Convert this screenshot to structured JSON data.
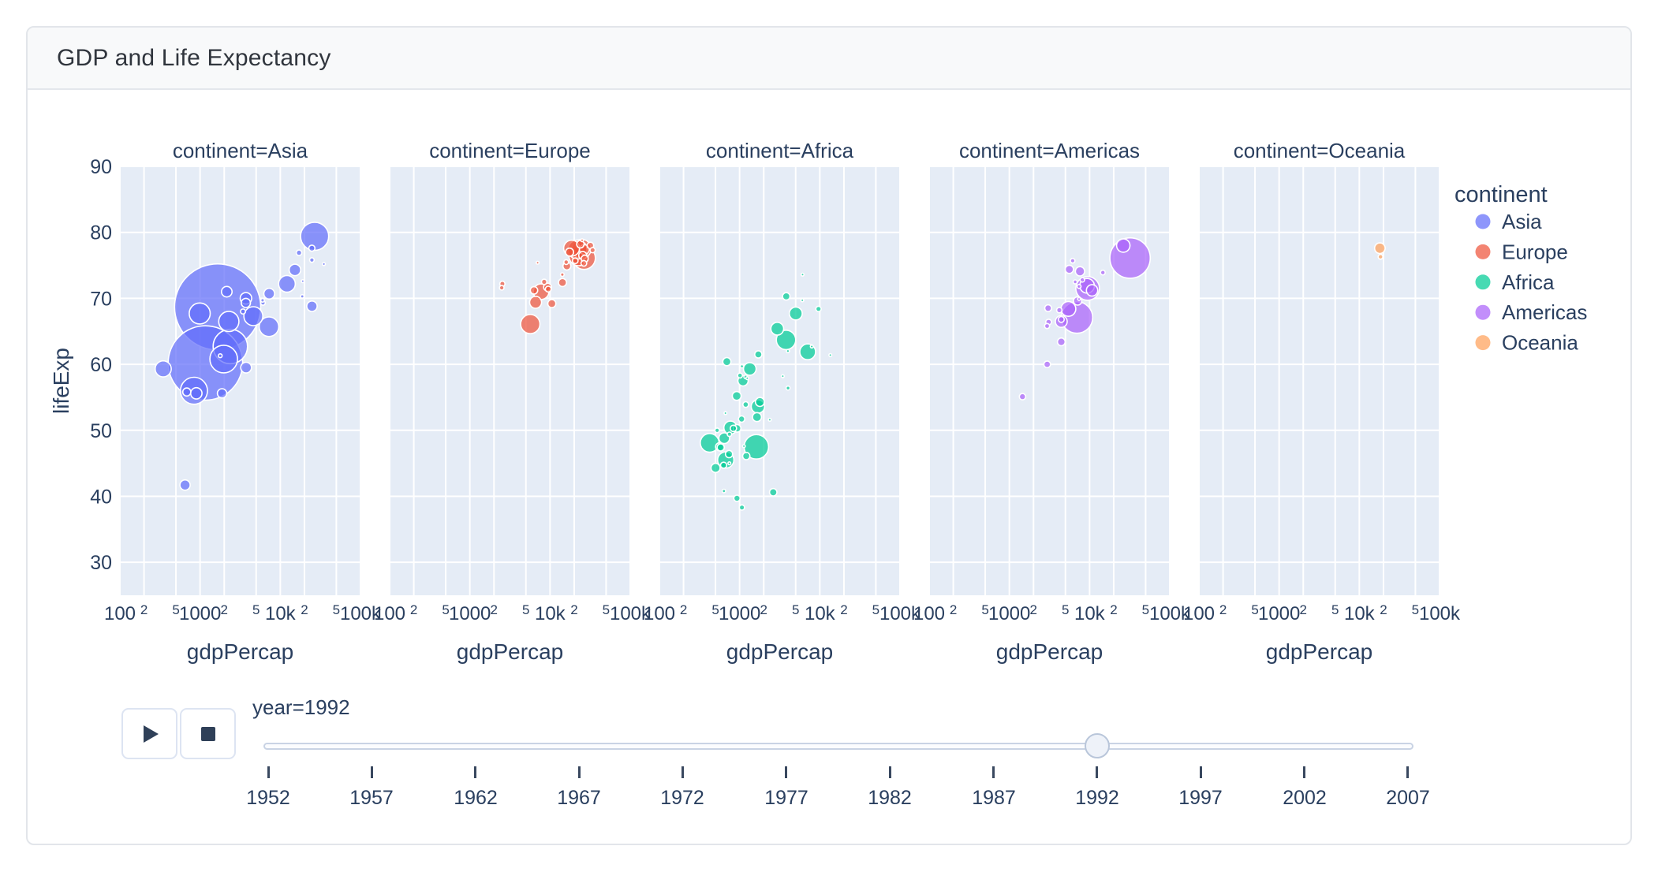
{
  "card": {
    "title": "GDP and Life Expectancy"
  },
  "chart_data": {
    "type": "scatter",
    "subtype": "faceted-bubble",
    "xlabel": "gdpPercap",
    "ylabel": "lifeExp",
    "x_scale": "log",
    "x_range": [
      100,
      100000
    ],
    "y_range": [
      25,
      90
    ],
    "y_ticks": [
      30,
      40,
      50,
      60,
      70,
      80,
      90
    ],
    "x_ticks": [
      {
        "v": 100,
        "label": "100",
        "major": true
      },
      {
        "v": 200,
        "label": "2",
        "major": false
      },
      {
        "v": 500,
        "label": "5",
        "major": false
      },
      {
        "v": 1000,
        "label": "1000",
        "major": true
      },
      {
        "v": 2000,
        "label": "2",
        "major": false
      },
      {
        "v": 5000,
        "label": "5",
        "major": false
      },
      {
        "v": 10000,
        "label": "10k",
        "major": true
      },
      {
        "v": 20000,
        "label": "2",
        "major": false
      },
      {
        "v": 50000,
        "label": "5",
        "major": false
      },
      {
        "v": 100000,
        "label": "100k",
        "major": true
      }
    ],
    "legend_title": "continent",
    "size_field": "pop_millions",
    "point_format": [
      "gdpPercap",
      "lifeExp",
      "pop_millions"
    ],
    "series": [
      {
        "name": "Asia",
        "color": "#636EFA",
        "facet_title": "continent=Asia",
        "points": [
          [
            649,
            41.7,
            16.3
          ],
          [
            19036,
            72.6,
            0.53
          ],
          [
            838,
            56.0,
            113.7
          ],
          [
            682,
            55.8,
            10.2
          ],
          [
            1656,
            68.7,
            1165
          ],
          [
            24757,
            77.6,
            5.8
          ],
          [
            1164,
            60.2,
            872
          ],
          [
            2383,
            62.7,
            184.8
          ],
          [
            7235,
            65.7,
            60.4
          ],
          [
            3746,
            59.5,
            17.9
          ],
          [
            17122,
            76.9,
            4.9
          ],
          [
            26825,
            79.4,
            124.3
          ],
          [
            3431,
            68.0,
            3.9
          ],
          [
            3727,
            70.0,
            20.7
          ],
          [
            12104,
            72.2,
            43.8
          ],
          [
            34933,
            75.2,
            1.4
          ],
          [
            6090,
            69.3,
            3.2
          ],
          [
            7277,
            70.7,
            18.3
          ],
          [
            1785,
            61.3,
            2.3
          ],
          [
            347,
            59.3,
            40.5
          ],
          [
            897,
            55.6,
            20.3
          ],
          [
            18795,
            70.3,
            1.9
          ],
          [
            1972,
            60.8,
            120.1
          ],
          [
            2280,
            66.5,
            64.0
          ],
          [
            24841,
            68.8,
            17.0
          ],
          [
            24770,
            75.8,
            3.2
          ],
          [
            2154,
            71.0,
            17.6
          ],
          [
            3726,
            69.3,
            13.2
          ],
          [
            15215,
            74.3,
            20.7
          ],
          [
            4617,
            67.3,
            56.7
          ],
          [
            989,
            67.7,
            69.0
          ],
          [
            6017,
            69.7,
            2.1
          ],
          [
            1879,
            55.6,
            13.7
          ]
        ]
      },
      {
        "name": "Europe",
        "color": "#EF553B",
        "facet_title": "continent=Europe",
        "points": [
          [
            2497,
            71.6,
            3.3
          ],
          [
            27042,
            76.0,
            7.9
          ],
          [
            25576,
            76.5,
            10.0
          ],
          [
            2547,
            72.2,
            4.3
          ],
          [
            6303,
            71.2,
            8.7
          ],
          [
            8448,
            72.5,
            4.5
          ],
          [
            14297,
            72.4,
            10.3
          ],
          [
            26407,
            75.3,
            5.2
          ],
          [
            20647,
            75.7,
            5.0
          ],
          [
            24704,
            77.5,
            57.4
          ],
          [
            26505,
            76.1,
            80.6
          ],
          [
            17541,
            77.0,
            10.3
          ],
          [
            10536,
            69.2,
            10.3
          ],
          [
            25144,
            78.8,
            0.26
          ],
          [
            15895,
            75.5,
            3.6
          ],
          [
            22014,
            77.4,
            56.8
          ],
          [
            7003,
            75.4,
            0.62
          ],
          [
            26791,
            77.4,
            15.2
          ],
          [
            33965,
            77.3,
            4.3
          ],
          [
            7739,
            71.0,
            38.4
          ],
          [
            16207,
            74.9,
            9.9
          ],
          [
            6598,
            69.4,
            22.8
          ],
          [
            9325,
            71.7,
            9.8
          ],
          [
            9498,
            71.4,
            5.3
          ],
          [
            14214,
            73.6,
            2.0
          ],
          [
            18603,
            77.6,
            39.6
          ],
          [
            23880,
            78.2,
            8.7
          ],
          [
            31871,
            78.0,
            7.0
          ],
          [
            5678,
            66.1,
            58.2
          ],
          [
            22705,
            76.4,
            57.9
          ]
        ]
      },
      {
        "name": "Africa",
        "color": "#00CC96",
        "facet_title": "continent=Africa",
        "points": [
          [
            5023,
            67.7,
            26.3
          ],
          [
            2628,
            40.6,
            8.7
          ],
          [
            1191,
            53.9,
            5.0
          ],
          [
            7954,
            62.7,
            1.3
          ],
          [
            931,
            50.3,
            8.9
          ],
          [
            632,
            44.7,
            5.8
          ],
          [
            1793,
            54.3,
            12.5
          ],
          [
            747,
            49.4,
            3.1
          ],
          [
            1058,
            51.7,
            6.4
          ],
          [
            1246,
            57.9,
            0.45
          ],
          [
            672,
            45.5,
            41.3
          ],
          [
            4016,
            56.4,
            2.4
          ],
          [
            1648,
            52.0,
            12.8
          ],
          [
            2377,
            51.6,
            0.38
          ],
          [
            3794,
            63.7,
            59.4
          ],
          [
            1132,
            47.6,
            0.39
          ],
          [
            525,
            50.0,
            3.2
          ],
          [
            423,
            48.1,
            55.2
          ],
          [
            13522,
            61.4,
            1.0
          ],
          [
            665,
            52.6,
            1.0
          ],
          [
            1103,
            57.5,
            16.3
          ],
          [
            837,
            50.3,
            6.4
          ],
          [
            745,
            45.0,
            1.1
          ],
          [
            1341,
            59.3,
            25.0
          ],
          [
            1068,
            59.7,
            1.8
          ],
          [
            637,
            40.8,
            1.9
          ],
          [
            9641,
            68.4,
            4.4
          ],
          [
            921,
            55.2,
            12.2
          ],
          [
            563,
            47.5,
            10.0
          ],
          [
            739,
            46.4,
            8.4
          ],
          [
            1191,
            58.1,
            2.1
          ],
          [
            6058,
            69.7,
            1.1
          ],
          [
            2948,
            65.4,
            25.8
          ],
          [
            502,
            44.3,
            13.2
          ],
          [
            3998,
            62.0,
            1.6
          ],
          [
            581,
            47.4,
            8.4
          ],
          [
            1619,
            47.5,
            93.4
          ],
          [
            6101,
            73.6,
            0.62
          ],
          [
            1712,
            61.5,
            8.1
          ],
          [
            1068,
            38.3,
            4.3
          ],
          [
            926,
            39.7,
            6.1
          ],
          [
            7062,
            61.9,
            39.3
          ],
          [
            1693,
            53.6,
            28.2
          ],
          [
            3451,
            58.2,
            1.0
          ],
          [
            767,
            50.4,
            26.6
          ],
          [
            1012,
            58.3,
            3.8
          ],
          [
            3819,
            70.3,
            8.6
          ],
          [
            644,
            48.8,
            18.3
          ],
          [
            1210,
            46.1,
            8.4
          ],
          [
            693,
            60.4,
            10.7
          ]
        ]
      },
      {
        "name": "Americas",
        "color": "#AB63FA",
        "facet_title": "continent=Americas",
        "points": [
          [
            9308,
            71.9,
            34.0
          ],
          [
            2961,
            60.0,
            6.9
          ],
          [
            6950,
            67.1,
            156.0
          ],
          [
            26343,
            78.0,
            28.5
          ],
          [
            7596,
            74.1,
            13.6
          ],
          [
            5444,
            68.4,
            34.2
          ],
          [
            6160,
            75.7,
            3.2
          ],
          [
            5592,
            74.4,
            10.7
          ],
          [
            3044,
            68.5,
            7.3
          ],
          [
            7103,
            69.6,
            10.8
          ],
          [
            4444,
            66.8,
            5.3
          ],
          [
            4439,
            63.4,
            9.3
          ],
          [
            1456,
            55.1,
            6.3
          ],
          [
            3081,
            66.4,
            5.1
          ],
          [
            7405,
            71.8,
            2.4
          ],
          [
            9472,
            71.5,
            88.1
          ],
          [
            2955,
            65.8,
            4.0
          ],
          [
            6619,
            72.5,
            2.5
          ],
          [
            4196,
            68.2,
            4.5
          ],
          [
            4446,
            66.5,
            22.2
          ],
          [
            14641,
            73.9,
            3.6
          ],
          [
            7388,
            69.9,
            1.2
          ],
          [
            32003,
            76.1,
            256.9
          ],
          [
            8137,
            72.8,
            3.1
          ],
          [
            10733,
            71.2,
            20.0
          ]
        ]
      },
      {
        "name": "Oceania",
        "color": "#FFA15A",
        "facet_title": "continent=Oceania",
        "points": [
          [
            18051,
            77.6,
            17.5
          ],
          [
            18363,
            76.3,
            3.4
          ]
        ]
      }
    ]
  },
  "slider": {
    "year_label": "year=1992",
    "current_year": 1992,
    "years": [
      1952,
      1957,
      1962,
      1967,
      1972,
      1977,
      1982,
      1987,
      1992,
      1997,
      2002,
      2007
    ]
  }
}
